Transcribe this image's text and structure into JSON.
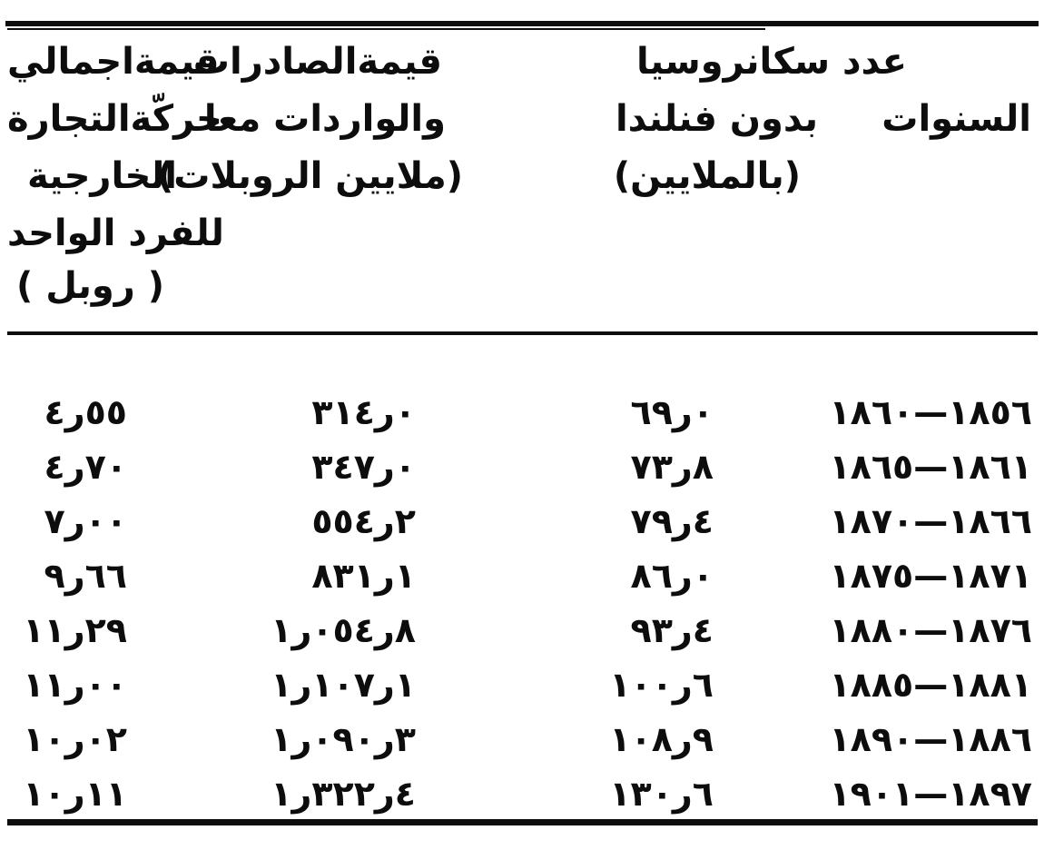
{
  "colors": {
    "ink": "#0d0d0d",
    "paper": "#ffffff"
  },
  "header": {
    "years": {
      "lines": [
        "السنوات"
      ]
    },
    "population": {
      "lines": [
        "عدد سكانروسيا",
        "بدون فنلندا",
        "(بالملايين)"
      ]
    },
    "trade": {
      "lines": [
        "قيمةالصادرات",
        "والواردات معا",
        "(ملايين الروبلات)"
      ]
    },
    "per_capita": {
      "lines": [
        "قيمةاجمالي",
        "حركّةالتجارة",
        "الخارجية",
        "للفرد الواحد",
        "( روبل )"
      ]
    }
  },
  "rows": [
    {
      "years": "١٨٦٠—١٨٥٦",
      "population": "٦٩ر٠",
      "trade": "٣١٤ر٠",
      "per_capita": "٤ر٥٥"
    },
    {
      "years": "١٨٦٥—١٨٦١",
      "population": "٧٣ر٨",
      "trade": "٣٤٧ر٠",
      "per_capita": "٤ر٧٠"
    },
    {
      "years": "١٨٧٠—١٨٦٦",
      "population": "٧٩ر٤",
      "trade": "٥٥٤ر٢",
      "per_capita": "٧ر٠٠"
    },
    {
      "years": "١٨٧٥—١٨٧١",
      "population": "٨٦ر٠",
      "trade": "٨٣١ر١",
      "per_capita": "٩ر٦٦"
    },
    {
      "years": "١٨٨٠—١٨٧٦",
      "population": "٩٣ر٤",
      "trade": "١ر٠٥٤ر٨",
      "per_capita": "١١ر٢٩"
    },
    {
      "years": "١٨٨٥—١٨٨١",
      "population": "١٠٠ر٦",
      "trade": "١ر١٠٧ر١",
      "per_capita": "١١ر٠٠"
    },
    {
      "years": "١٨٩٠—١٨٨٦",
      "population": "١٠٨ر٩",
      "trade": "١ر٠٩٠ر٣",
      "per_capita": "١٠ر٠٢"
    },
    {
      "years": "١٩٠١—١٨٩٧",
      "population": "١٣٠ر٦",
      "trade": "١ر٣٢٢ر٤",
      "per_capita": "١٠ر١١"
    }
  ]
}
